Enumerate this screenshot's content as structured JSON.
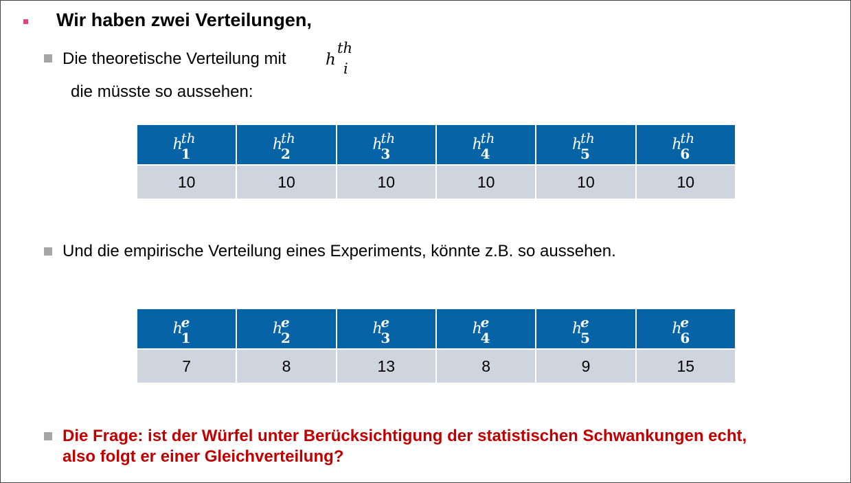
{
  "title": "Wir haben zwei Verteilungen,",
  "bullet1": {
    "text": "Die theoretische Verteilung mit",
    "symbol": {
      "base": "h",
      "sup": "th",
      "sub": "i"
    },
    "continuation": "die müsste so aussehen:"
  },
  "table_theoretical": {
    "headers": [
      {
        "base": "h",
        "sup": "th",
        "sub": "1"
      },
      {
        "base": "h",
        "sup": "th",
        "sub": "2"
      },
      {
        "base": "h",
        "sup": "th",
        "sub": "3"
      },
      {
        "base": "h",
        "sup": "th",
        "sub": "4"
      },
      {
        "base": "h",
        "sup": "th",
        "sub": "5"
      },
      {
        "base": "h",
        "sup": "th",
        "sub": "6"
      }
    ],
    "values": [
      "10",
      "10",
      "10",
      "10",
      "10",
      "10"
    ]
  },
  "bullet2": {
    "text": "Und die empirische Verteilung eines Experiments, könnte z.B. so aussehen."
  },
  "table_empirical": {
    "headers": [
      {
        "base": "h",
        "sup": "e",
        "sub": "1"
      },
      {
        "base": "h",
        "sup": "e",
        "sub": "2"
      },
      {
        "base": "h",
        "sup": "e",
        "sub": "3"
      },
      {
        "base": "h",
        "sup": "e",
        "sub": "4"
      },
      {
        "base": "h",
        "sup": "e",
        "sub": "5"
      },
      {
        "base": "h",
        "sup": "e",
        "sub": "6"
      }
    ],
    "values": [
      "7",
      "8",
      "13",
      "8",
      "9",
      "15"
    ]
  },
  "question": {
    "line1": "Die Frage: ist der Würfel unter Berücksichtigung der statistischen Schwankungen echt,",
    "line2": "also folgt er einer Gleichverteilung?"
  },
  "colors": {
    "header_blue": "#0563a6",
    "cell_gray": "#cfd4df",
    "question_red": "#c00000",
    "title_bullet_pink": "#d9487d"
  }
}
